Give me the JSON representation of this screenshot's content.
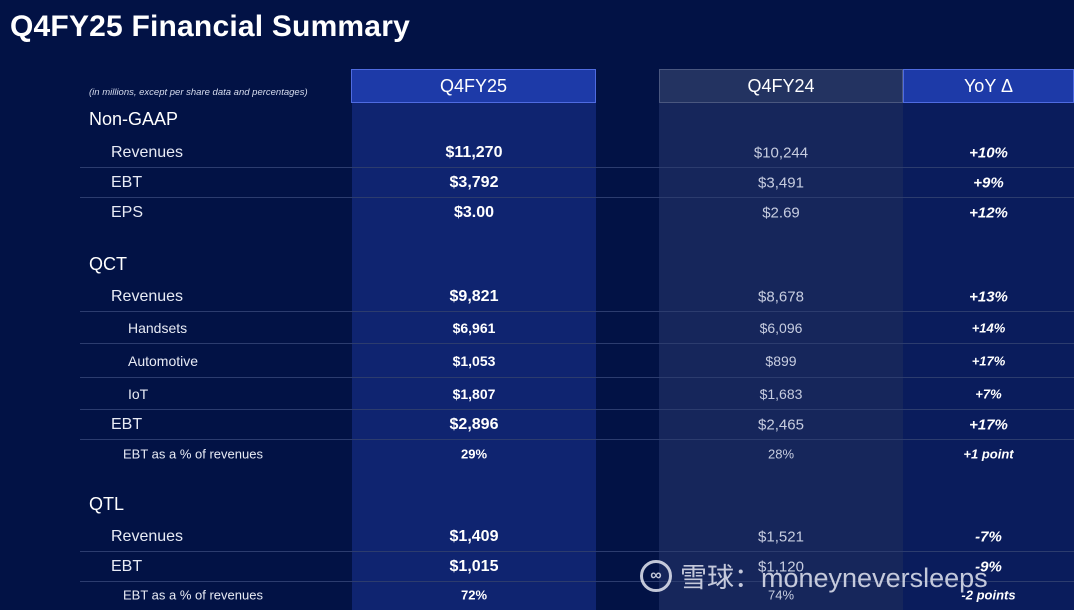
{
  "title": "Q4FY25 Financial Summary",
  "note": "(in millions, except per share data and percentages)",
  "columns": {
    "current": "Q4FY25",
    "prior": "Q4FY24",
    "yoy": "YoY Δ"
  },
  "sections": {
    "non_gaap": {
      "label": "Non-GAAP",
      "rows": [
        {
          "label": "Revenues",
          "current": "$11,270",
          "prior": "$10,244",
          "yoy": "+10%"
        },
        {
          "label": "EBT",
          "current": "$3,792",
          "prior": "$3,491",
          "yoy": "+9%"
        },
        {
          "label": "EPS",
          "current": "$3.00",
          "prior": "$2.69",
          "yoy": "+12%"
        }
      ]
    },
    "qct": {
      "label": "QCT",
      "rows": [
        {
          "label": "Revenues",
          "current": "$9,821",
          "prior": "$8,678",
          "yoy": "+13%"
        },
        {
          "label": "Handsets",
          "current": "$6,961",
          "prior": "$6,096",
          "yoy": "+14%"
        },
        {
          "label": "Automotive",
          "current": "$1,053",
          "prior": "$899",
          "yoy": "+17%"
        },
        {
          "label": "IoT",
          "current": "$1,807",
          "prior": "$1,683",
          "yoy": "+7%"
        },
        {
          "label": "EBT",
          "current": "$2,896",
          "prior": "$2,465",
          "yoy": "+17%"
        },
        {
          "label": "EBT as a % of revenues",
          "current": "29%",
          "prior": "28%",
          "yoy": "+1 point"
        }
      ]
    },
    "qtl": {
      "label": "QTL",
      "rows": [
        {
          "label": "Revenues",
          "current": "$1,409",
          "prior": "$1,521",
          "yoy": "-7%"
        },
        {
          "label": "EBT",
          "current": "$1,015",
          "prior": "$1,120",
          "yoy": "-9%"
        },
        {
          "label": "EBT as a % of revenues",
          "current": "72%",
          "prior": "74%",
          "yoy": "-2 points"
        }
      ]
    }
  },
  "watermark": {
    "logo": "∞",
    "text": "雪球：moneyneversleeps"
  }
}
